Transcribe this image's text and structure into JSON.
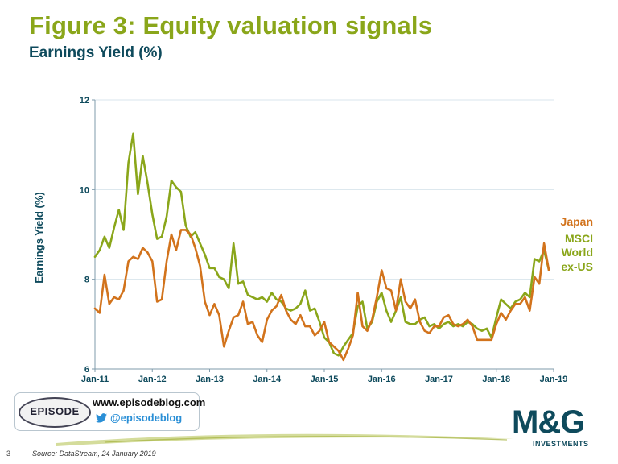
{
  "title": "Figure 3: Equity valuation signals",
  "subtitle": "Earnings Yield (%)",
  "footer": {
    "page_number": "3",
    "source": "Source: DataStream, 24 January 2019",
    "brand_url": "www.episodeblog.com",
    "brand_handle": "@episodeblog",
    "brand_logo_text": "EPISODE",
    "mg_logo": "M&G",
    "mg_sub": "INVESTMENTS"
  },
  "chart_data": {
    "type": "line",
    "ylabel": "Earnings Yield (%)",
    "xlabel": "",
    "ylim": [
      6,
      12
    ],
    "yticks": [
      6,
      8,
      10,
      12
    ],
    "xlim": [
      0,
      96
    ],
    "xtick_labels": [
      "Jan-11",
      "Jan-12",
      "Jan-13",
      "Jan-14",
      "Jan-15",
      "Jan-16",
      "Jan-17",
      "Jan-18",
      "Jan-19"
    ],
    "xtick_positions": [
      0,
      12,
      24,
      36,
      48,
      60,
      72,
      84,
      96
    ],
    "grid": true,
    "legend": "right",
    "series": [
      {
        "name": "Japan",
        "color": "#d2731c",
        "values": [
          7.35,
          7.25,
          8.1,
          7.45,
          7.6,
          7.55,
          7.75,
          8.4,
          8.5,
          8.45,
          8.7,
          8.6,
          8.4,
          7.5,
          7.55,
          8.4,
          9.0,
          8.65,
          9.1,
          9.1,
          9.0,
          8.7,
          8.3,
          7.5,
          7.2,
          7.45,
          7.2,
          6.5,
          6.85,
          7.15,
          7.2,
          7.5,
          7.0,
          7.05,
          6.75,
          6.6,
          7.1,
          7.3,
          7.4,
          7.65,
          7.3,
          7.1,
          7.0,
          7.2,
          6.95,
          6.95,
          6.75,
          6.85,
          7.05,
          6.6,
          6.5,
          6.4,
          6.2,
          6.45,
          6.75,
          7.7,
          6.95,
          6.85,
          7.1,
          7.6,
          8.2,
          7.8,
          7.75,
          7.3,
          8.0,
          7.5,
          7.35,
          7.55,
          7.05,
          6.85,
          6.8,
          6.95,
          6.95,
          7.15,
          7.2,
          7.0,
          6.95,
          7.0,
          7.1,
          6.95,
          6.65,
          6.65,
          6.65,
          6.65,
          7.0,
          7.25,
          7.1,
          7.3,
          7.45,
          7.45,
          7.6,
          7.3,
          8.05,
          7.9,
          8.8,
          8.2
        ]
      },
      {
        "name": "MSCI World ex-US",
        "color": "#8aa61a",
        "values": [
          8.5,
          8.65,
          8.95,
          8.7,
          9.15,
          9.55,
          9.1,
          10.6,
          11.25,
          9.9,
          10.75,
          10.15,
          9.45,
          8.9,
          8.95,
          9.4,
          10.2,
          10.05,
          9.95,
          9.2,
          8.95,
          9.05,
          8.8,
          8.55,
          8.25,
          8.25,
          8.05,
          8.0,
          7.8,
          8.8,
          7.9,
          7.95,
          7.65,
          7.6,
          7.55,
          7.6,
          7.5,
          7.7,
          7.55,
          7.5,
          7.35,
          7.3,
          7.35,
          7.45,
          7.75,
          7.3,
          7.35,
          7.05,
          6.7,
          6.6,
          6.35,
          6.3,
          6.5,
          6.65,
          6.8,
          7.4,
          7.5,
          6.9,
          7.05,
          7.5,
          7.7,
          7.3,
          7.05,
          7.3,
          7.6,
          7.05,
          7.0,
          7.0,
          7.1,
          7.15,
          6.95,
          7.0,
          6.9,
          7.0,
          7.05,
          6.95,
          7.0,
          6.95,
          7.05,
          7.0,
          6.9,
          6.85,
          6.9,
          6.7,
          7.15,
          7.55,
          7.45,
          7.35,
          7.5,
          7.55,
          7.7,
          7.6,
          8.45,
          8.4,
          8.65,
          8.2
        ]
      }
    ],
    "legend_labels": [
      {
        "text": "Japan",
        "color": "#d2731c"
      },
      {
        "text": "MSCI",
        "color": "#8aa61a"
      },
      {
        "text": "World",
        "color": "#8aa61a"
      },
      {
        "text": "ex-US",
        "color": "#8aa61a"
      }
    ]
  }
}
